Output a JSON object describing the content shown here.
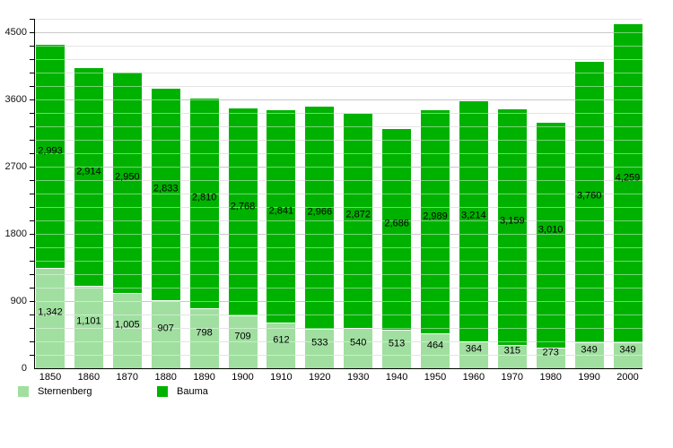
{
  "chart_data": {
    "type": "bar",
    "stacked": true,
    "title": "",
    "xlabel": "",
    "ylabel": "",
    "categories": [
      "1850",
      "1860",
      "1870",
      "1880",
      "1890",
      "1900",
      "1910",
      "1920",
      "1930",
      "1940",
      "1950",
      "1960",
      "1970",
      "1980",
      "1990",
      "2000"
    ],
    "series": [
      {
        "name": "Sternenberg",
        "color": "#a0dfa0",
        "values": [
          1342,
          1101,
          1005,
          907,
          798,
          709,
          612,
          533,
          540,
          513,
          464,
          364,
          315,
          273,
          349,
          349
        ]
      },
      {
        "name": "Bauma",
        "color": "#00b200",
        "values": [
          2993,
          2914,
          2950,
          2833,
          2810,
          2768,
          2841,
          2966,
          2872,
          2686,
          2989,
          3214,
          3159,
          3010,
          3760,
          4259
        ]
      }
    ],
    "ylim": [
      0,
      4680
    ],
    "ytick_labels": [
      "0",
      "900",
      "1800",
      "2700",
      "3600",
      "4500"
    ],
    "ytick_interval": 900,
    "minor_grid_interval": 180,
    "grid": true,
    "legend_position": "bottom-left",
    "value_label_format": "thousands-comma",
    "axis_color": "#000000",
    "major_grid_color": "#c9c9c9",
    "minor_grid_color": "#e4e4e4",
    "background_color": "#ffffff"
  }
}
